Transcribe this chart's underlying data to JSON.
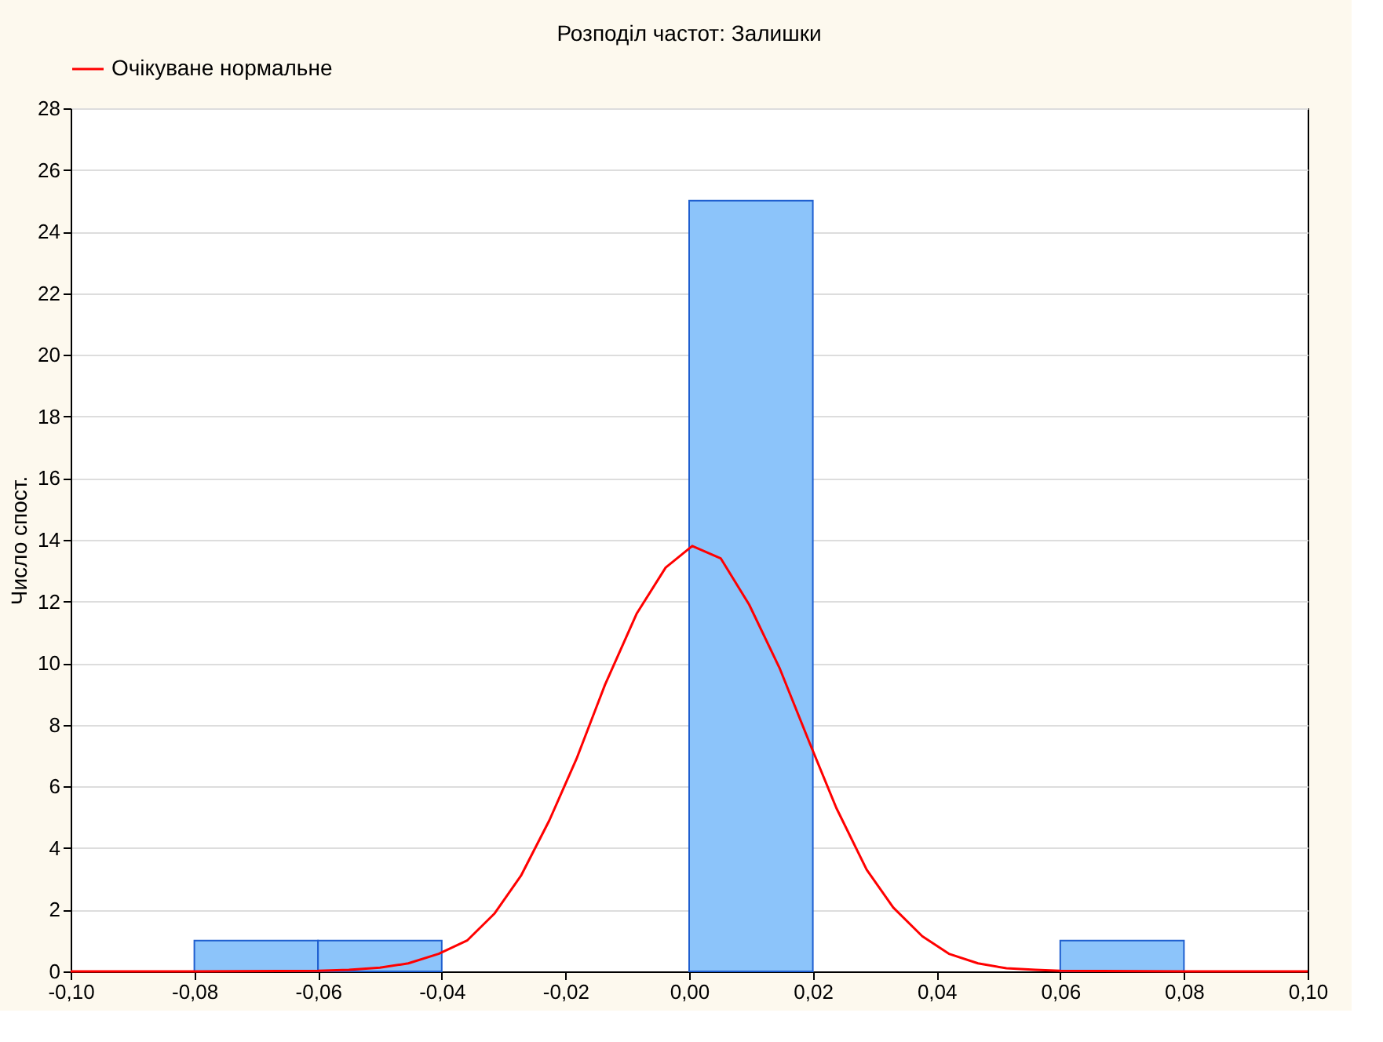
{
  "chart_data": {
    "type": "histogram",
    "title": "Розподіл частот: Залишки",
    "ylabel": "Число спост.",
    "bins": [
      -0.1,
      -0.08,
      -0.06,
      -0.04,
      -0.02,
      0.0,
      0.02,
      0.04,
      0.06,
      0.08,
      0.1
    ],
    "values": [
      0,
      1,
      1,
      0,
      0,
      25,
      0,
      0,
      1,
      0
    ],
    "color": "#8cc4fa",
    "series": [
      {
        "name": "Очікуване нормальне",
        "type": "line",
        "color": "#ff0000",
        "x": [
          -0.1,
          -0.08,
          -0.06,
          -0.055,
          -0.05,
          -0.0454,
          -0.0405,
          -0.0359,
          -0.0315,
          -0.0272,
          -0.0226,
          -0.0182,
          -0.0136,
          -0.0085,
          -0.0038,
          0.0005,
          0.0051,
          0.0097,
          0.0146,
          0.0195,
          0.0238,
          0.0287,
          0.033,
          0.0377,
          0.042,
          0.0467,
          0.0513,
          0.056,
          0.06,
          0.08,
          0.1
        ],
        "values": [
          0,
          0,
          0.02,
          0.05,
          0.12,
          0.26,
          0.57,
          1.0,
          1.87,
          3.1,
          4.9,
          6.9,
          9.3,
          11.6,
          13.1,
          13.8,
          13.4,
          11.9,
          9.85,
          7.4,
          5.3,
          3.3,
          2.07,
          1.14,
          0.57,
          0.26,
          0.1,
          0.05,
          0.02,
          0,
          0
        ]
      }
    ],
    "xlim": [
      -0.1,
      0.1
    ],
    "xticks": [
      {
        "value": -0.1,
        "label": "-0,10"
      },
      {
        "value": -0.08,
        "label": "-0,08"
      },
      {
        "value": -0.06,
        "label": "-0,06"
      },
      {
        "value": -0.04,
        "label": "-0,04"
      },
      {
        "value": -0.02,
        "label": "-0,02"
      },
      {
        "value": 0.0,
        "label": "0,00"
      },
      {
        "value": 0.02,
        "label": "0,02"
      },
      {
        "value": 0.04,
        "label": "0,04"
      },
      {
        "value": 0.06,
        "label": "0,06"
      },
      {
        "value": 0.08,
        "label": "0,08"
      },
      {
        "value": 0.1,
        "label": "0,10"
      }
    ],
    "ylim": [
      0,
      28
    ],
    "yticks": [
      0,
      2,
      4,
      6,
      8,
      10,
      12,
      14,
      16,
      18,
      20,
      22,
      24,
      26,
      28
    ],
    "grid": "y",
    "legend": "top"
  }
}
